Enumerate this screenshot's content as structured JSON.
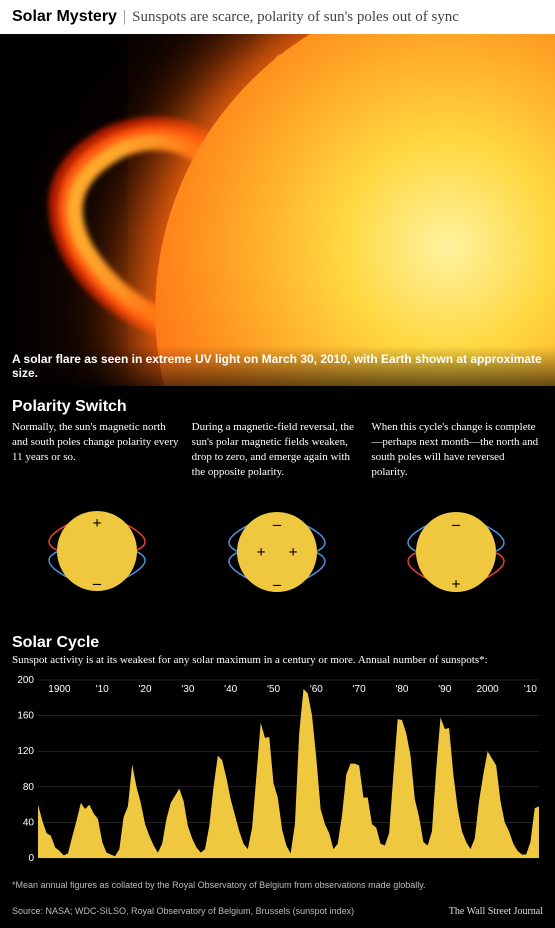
{
  "header": {
    "headline": "Solar Mystery",
    "subheadline": "Sunspots are scarce, polarity of sun's poles out of sync"
  },
  "hero": {
    "caption": "A solar flare as seen in extreme UV light on March 30, 2010, with Earth shown at approximate size.",
    "background_color": "#000000",
    "sun_colors": {
      "core": "#fff3a0",
      "mid": "#ff9820",
      "outer": "#ff5a10",
      "edge": "#c02800"
    },
    "flare_colors": {
      "outer": "#b01c00",
      "mid": "#ff5a10",
      "inner": "#ffb030"
    },
    "earth_colors": {
      "light": "#a8c8e8",
      "dark": "#1a3a60"
    }
  },
  "polarity": {
    "title": "Polarity Switch",
    "columns": [
      {
        "text": "Normally, the sun's magnetic north and south poles change polarity every 11 years or so.",
        "top_sign": "+",
        "bot_sign": "–",
        "top_color": "#e74030",
        "bot_color": "#4a90d9",
        "mode": "normal"
      },
      {
        "text": "During a magnetic-field reversal, the sun's polar magnetic fields weaken, drop to zero, and emerge again with the opposite polarity.",
        "top_sign": "–",
        "bot_sign": "–",
        "top_color": "#4a90d9",
        "bot_color": "#4a90d9",
        "mode": "reversal"
      },
      {
        "text": "When this cycle's change is complete—perhaps next month—the north and south poles will have reversed polarity.",
        "top_sign": "–",
        "bot_sign": "+",
        "top_color": "#4a90d9",
        "bot_color": "#e74030",
        "mode": "reversed"
      }
    ],
    "sun_fill": "#f0c840",
    "diagram_bg": "#000000",
    "line_width": 1.5
  },
  "solar_cycle": {
    "title": "Solar Cycle",
    "subtitle": "Sunspot activity is at its weakest for any solar maximum in a century or more. Annual number of sunspots*:",
    "type": "area",
    "x_start": 1895,
    "x_end": 2012,
    "x_labels": [
      {
        "x": 1900,
        "label": "1900"
      },
      {
        "x": 1910,
        "label": "'10"
      },
      {
        "x": 1920,
        "label": "'20"
      },
      {
        "x": 1930,
        "label": "'30"
      },
      {
        "x": 1940,
        "label": "'40"
      },
      {
        "x": 1950,
        "label": "'50"
      },
      {
        "x": 1960,
        "label": "'60"
      },
      {
        "x": 1970,
        "label": "'70"
      },
      {
        "x": 1980,
        "label": "'80"
      },
      {
        "x": 1990,
        "label": "'90"
      },
      {
        "x": 2000,
        "label": "2000"
      },
      {
        "x": 2010,
        "label": "'10"
      }
    ],
    "ylim": [
      0,
      200
    ],
    "ytick_step": 40,
    "yticks": [
      0,
      40,
      80,
      120,
      160,
      200
    ],
    "fill_color": "#f0c840",
    "grid_color": "#444444",
    "background_color": "#000000",
    "label_fontsize": 10,
    "data": [
      {
        "x": 1895,
        "y": 60
      },
      {
        "x": 1896,
        "y": 42
      },
      {
        "x": 1897,
        "y": 28
      },
      {
        "x": 1898,
        "y": 25
      },
      {
        "x": 1899,
        "y": 12
      },
      {
        "x": 1900,
        "y": 8
      },
      {
        "x": 1901,
        "y": 3
      },
      {
        "x": 1902,
        "y": 5
      },
      {
        "x": 1903,
        "y": 24
      },
      {
        "x": 1904,
        "y": 42
      },
      {
        "x": 1905,
        "y": 62
      },
      {
        "x": 1906,
        "y": 55
      },
      {
        "x": 1907,
        "y": 60
      },
      {
        "x": 1908,
        "y": 50
      },
      {
        "x": 1909,
        "y": 44
      },
      {
        "x": 1910,
        "y": 18
      },
      {
        "x": 1911,
        "y": 6
      },
      {
        "x": 1912,
        "y": 4
      },
      {
        "x": 1913,
        "y": 2
      },
      {
        "x": 1914,
        "y": 10
      },
      {
        "x": 1915,
        "y": 46
      },
      {
        "x": 1916,
        "y": 58
      },
      {
        "x": 1917,
        "y": 105
      },
      {
        "x": 1918,
        "y": 80
      },
      {
        "x": 1919,
        "y": 62
      },
      {
        "x": 1920,
        "y": 38
      },
      {
        "x": 1921,
        "y": 25
      },
      {
        "x": 1922,
        "y": 14
      },
      {
        "x": 1923,
        "y": 6
      },
      {
        "x": 1924,
        "y": 16
      },
      {
        "x": 1925,
        "y": 44
      },
      {
        "x": 1926,
        "y": 62
      },
      {
        "x": 1927,
        "y": 70
      },
      {
        "x": 1928,
        "y": 78
      },
      {
        "x": 1929,
        "y": 64
      },
      {
        "x": 1930,
        "y": 36
      },
      {
        "x": 1931,
        "y": 22
      },
      {
        "x": 1932,
        "y": 12
      },
      {
        "x": 1933,
        "y": 6
      },
      {
        "x": 1934,
        "y": 10
      },
      {
        "x": 1935,
        "y": 36
      },
      {
        "x": 1936,
        "y": 80
      },
      {
        "x": 1937,
        "y": 115
      },
      {
        "x": 1938,
        "y": 110
      },
      {
        "x": 1939,
        "y": 90
      },
      {
        "x": 1940,
        "y": 66
      },
      {
        "x": 1941,
        "y": 48
      },
      {
        "x": 1942,
        "y": 30
      },
      {
        "x": 1943,
        "y": 16
      },
      {
        "x": 1944,
        "y": 10
      },
      {
        "x": 1945,
        "y": 34
      },
      {
        "x": 1946,
        "y": 92
      },
      {
        "x": 1947,
        "y": 152
      },
      {
        "x": 1948,
        "y": 135
      },
      {
        "x": 1949,
        "y": 136
      },
      {
        "x": 1950,
        "y": 84
      },
      {
        "x": 1951,
        "y": 68
      },
      {
        "x": 1952,
        "y": 32
      },
      {
        "x": 1953,
        "y": 14
      },
      {
        "x": 1954,
        "y": 5
      },
      {
        "x": 1955,
        "y": 38
      },
      {
        "x": 1956,
        "y": 140
      },
      {
        "x": 1957,
        "y": 190
      },
      {
        "x": 1958,
        "y": 185
      },
      {
        "x": 1959,
        "y": 160
      },
      {
        "x": 1960,
        "y": 112
      },
      {
        "x": 1961,
        "y": 55
      },
      {
        "x": 1962,
        "y": 38
      },
      {
        "x": 1963,
        "y": 28
      },
      {
        "x": 1964,
        "y": 10
      },
      {
        "x": 1965,
        "y": 16
      },
      {
        "x": 1966,
        "y": 48
      },
      {
        "x": 1967,
        "y": 94
      },
      {
        "x": 1968,
        "y": 106
      },
      {
        "x": 1969,
        "y": 106
      },
      {
        "x": 1970,
        "y": 104
      },
      {
        "x": 1971,
        "y": 68
      },
      {
        "x": 1972,
        "y": 68
      },
      {
        "x": 1973,
        "y": 38
      },
      {
        "x": 1974,
        "y": 34
      },
      {
        "x": 1975,
        "y": 16
      },
      {
        "x": 1976,
        "y": 14
      },
      {
        "x": 1977,
        "y": 28
      },
      {
        "x": 1978,
        "y": 94
      },
      {
        "x": 1979,
        "y": 156
      },
      {
        "x": 1980,
        "y": 155
      },
      {
        "x": 1981,
        "y": 140
      },
      {
        "x": 1982,
        "y": 115
      },
      {
        "x": 1983,
        "y": 66
      },
      {
        "x": 1984,
        "y": 46
      },
      {
        "x": 1985,
        "y": 18
      },
      {
        "x": 1986,
        "y": 14
      },
      {
        "x": 1987,
        "y": 30
      },
      {
        "x": 1988,
        "y": 100
      },
      {
        "x": 1989,
        "y": 158
      },
      {
        "x": 1990,
        "y": 145
      },
      {
        "x": 1991,
        "y": 146
      },
      {
        "x": 1992,
        "y": 94
      },
      {
        "x": 1993,
        "y": 56
      },
      {
        "x": 1994,
        "y": 30
      },
      {
        "x": 1995,
        "y": 18
      },
      {
        "x": 1996,
        "y": 10
      },
      {
        "x": 1997,
        "y": 22
      },
      {
        "x": 1998,
        "y": 64
      },
      {
        "x": 1999,
        "y": 94
      },
      {
        "x": 2000,
        "y": 120
      },
      {
        "x": 2001,
        "y": 112
      },
      {
        "x": 2002,
        "y": 104
      },
      {
        "x": 2003,
        "y": 64
      },
      {
        "x": 2004,
        "y": 40
      },
      {
        "x": 2005,
        "y": 30
      },
      {
        "x": 2006,
        "y": 16
      },
      {
        "x": 2007,
        "y": 8
      },
      {
        "x": 2008,
        "y": 4
      },
      {
        "x": 2009,
        "y": 4
      },
      {
        "x": 2010,
        "y": 18
      },
      {
        "x": 2011,
        "y": 56
      },
      {
        "x": 2012,
        "y": 58
      }
    ]
  },
  "footer": {
    "footnote": "*Mean annual figures as collated by the Royal Observatory of Belgium from observations made globally.",
    "source": "Source: NASA; WDC-SILSO, Royal Observatory of Belgium, Brussels (sunspot index)",
    "credit": "The Wall Street Journal"
  }
}
